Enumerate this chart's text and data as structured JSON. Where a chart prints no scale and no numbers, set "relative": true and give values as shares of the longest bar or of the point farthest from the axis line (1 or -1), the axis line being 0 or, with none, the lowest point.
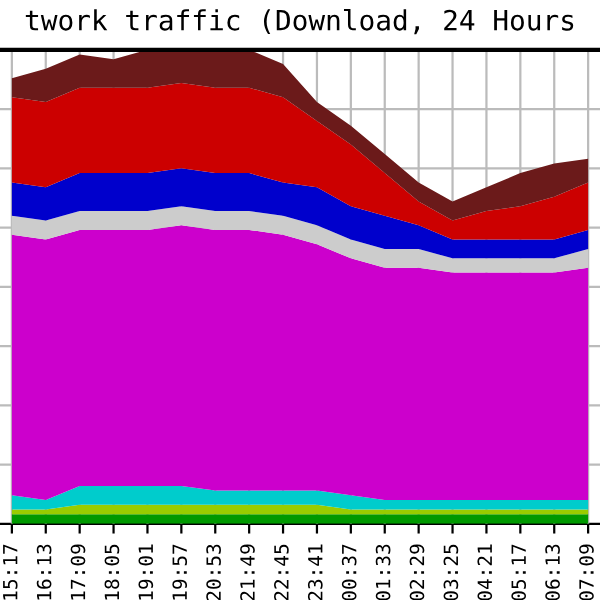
{
  "chart_data": {
    "type": "area",
    "title": "twork traffic (Download, 24 Hours",
    "stacked": true,
    "relative": true,
    "grid": true,
    "legend": false,
    "tick_labels": "x",
    "categories": [
      "15:17",
      "16:13",
      "17:09",
      "18:05",
      "19:01",
      "19:57",
      "20:53",
      "21:49",
      "22:45",
      "23:41",
      "00:37",
      "01:33",
      "02:29",
      "03:25",
      "04:21",
      "05:17",
      "06:13",
      "07:09"
    ],
    "series": [
      {
        "color": "#009900",
        "values": [
          0.02,
          0.02,
          0.02,
          0.02,
          0.02,
          0.02,
          0.02,
          0.02,
          0.02,
          0.02,
          0.02,
          0.02,
          0.02,
          0.02,
          0.02,
          0.02,
          0.02,
          0.02
        ]
      },
      {
        "color": "#99cc00",
        "values": [
          0.01,
          0.01,
          0.02,
          0.02,
          0.02,
          0.02,
          0.02,
          0.02,
          0.02,
          0.02,
          0.01,
          0.01,
          0.01,
          0.01,
          0.01,
          0.01,
          0.01,
          0.01
        ]
      },
      {
        "color": "#00cccc",
        "values": [
          0.03,
          0.02,
          0.04,
          0.04,
          0.04,
          0.04,
          0.03,
          0.03,
          0.03,
          0.03,
          0.03,
          0.02,
          0.02,
          0.02,
          0.02,
          0.02,
          0.02,
          0.02
        ]
      },
      {
        "color": "#cc00cc",
        "values": [
          0.55,
          0.55,
          0.54,
          0.54,
          0.54,
          0.55,
          0.55,
          0.55,
          0.54,
          0.52,
          0.5,
          0.49,
          0.49,
          0.48,
          0.48,
          0.48,
          0.48,
          0.49
        ]
      },
      {
        "color": "#cccccc",
        "values": [
          0.04,
          0.04,
          0.04,
          0.04,
          0.04,
          0.04,
          0.04,
          0.04,
          0.04,
          0.04,
          0.04,
          0.04,
          0.04,
          0.03,
          0.03,
          0.03,
          0.03,
          0.04
        ]
      },
      {
        "color": "#0000cc",
        "values": [
          0.07,
          0.07,
          0.08,
          0.08,
          0.08,
          0.08,
          0.08,
          0.08,
          0.07,
          0.08,
          0.07,
          0.07,
          0.05,
          0.04,
          0.04,
          0.04,
          0.04,
          0.04
        ]
      },
      {
        "color": "#cc0000",
        "values": [
          0.18,
          0.18,
          0.18,
          0.18,
          0.18,
          0.18,
          0.18,
          0.18,
          0.18,
          0.14,
          0.13,
          0.09,
          0.05,
          0.04,
          0.06,
          0.07,
          0.09,
          0.1
        ]
      },
      {
        "color": "#6b1a1a",
        "values": [
          0.04,
          0.07,
          0.07,
          0.06,
          0.08,
          0.07,
          0.08,
          0.08,
          0.07,
          0.04,
          0.04,
          0.04,
          0.04,
          0.04,
          0.05,
          0.07,
          0.07,
          0.05
        ]
      }
    ]
  }
}
